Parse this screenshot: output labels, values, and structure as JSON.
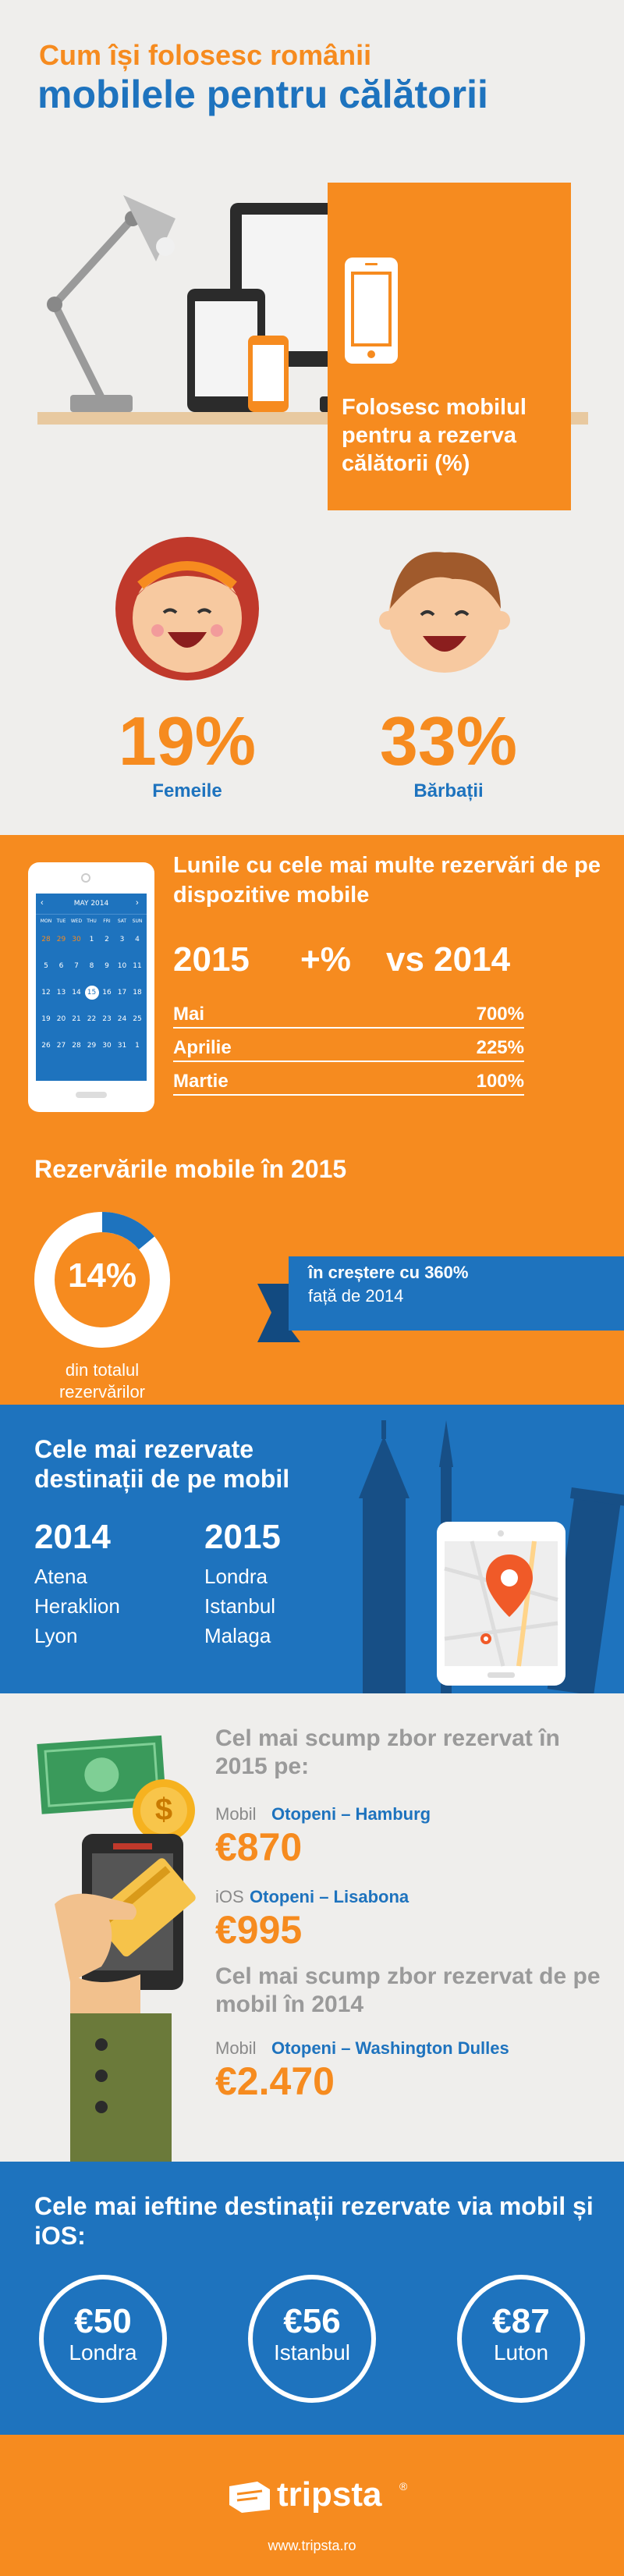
{
  "header": {
    "line1": "Cum își folosesc românii",
    "line2": "mobilele pentru călătorii"
  },
  "usage": {
    "label": "Folosesc mobilul pentru a rezerva călătorii (%)",
    "women": {
      "value": "19%",
      "label": "Femeile"
    },
    "men": {
      "value": "33%",
      "label": "Bărbații"
    }
  },
  "months": {
    "title": "Lunile cu cele mai multe rezervări de pe dispozitive mobile",
    "calendar_month": "MAY 2014",
    "col1": "2015",
    "col2": "+%",
    "col3": "vs 2014",
    "rows": [
      {
        "name": "Mai",
        "value": "700%"
      },
      {
        "name": "Aprilie",
        "value": "225%"
      },
      {
        "name": "Martie",
        "value": "100%"
      }
    ],
    "weekdays": [
      "MON",
      "TUE",
      "WED",
      "THU",
      "FRI",
      "SAT",
      "SUN"
    ]
  },
  "mobile_bookings": {
    "title": "Rezervările mobile în 2015",
    "percent": "14%",
    "percent_fraction": 0.14,
    "caption": "din totalul rezervărilor",
    "ribbon_line1": "în creștere cu 360%",
    "ribbon_line2": "față de 2014"
  },
  "destinations": {
    "title": "Cele mai rezervate destinații de pe mobil",
    "y2014": {
      "year": "2014",
      "cities": [
        "Atena",
        "Heraklion",
        "Lyon"
      ]
    },
    "y2015": {
      "year": "2015",
      "cities": [
        "Londra",
        "Istanbul",
        "Malaga"
      ]
    }
  },
  "expensive": {
    "title2015": "Cel mai scump zbor rezervat în 2015 pe:",
    "mobile_label": "Mobil",
    "mobile_route": "Otopeni – Hamburg",
    "mobile_price": "€870",
    "ios_label": "iOS",
    "ios_route": "Otopeni – Lisabona",
    "ios_price": "€995",
    "title2014": "Cel mai scump zbor rezervat de pe mobil în 2014",
    "m2014_label": "Mobil",
    "m2014_route": "Otopeni – Washington Dulles",
    "m2014_price": "€2.470",
    "coin_symbol": "$"
  },
  "cheapest": {
    "title": "Cele mai ieftine destinații rezervate via mobil și iOS:",
    "items": [
      {
        "price": "€50",
        "city": "Londra"
      },
      {
        "price": "€56",
        "city": "Istanbul"
      },
      {
        "price": "€87",
        "city": "Luton"
      }
    ]
  },
  "footer": {
    "brand": "tripsta",
    "reg": "®",
    "url": "www.tripsta.ro"
  },
  "colors": {
    "orange": "#f68b1f",
    "blue": "#1e73be",
    "bg": "#efeeec"
  }
}
